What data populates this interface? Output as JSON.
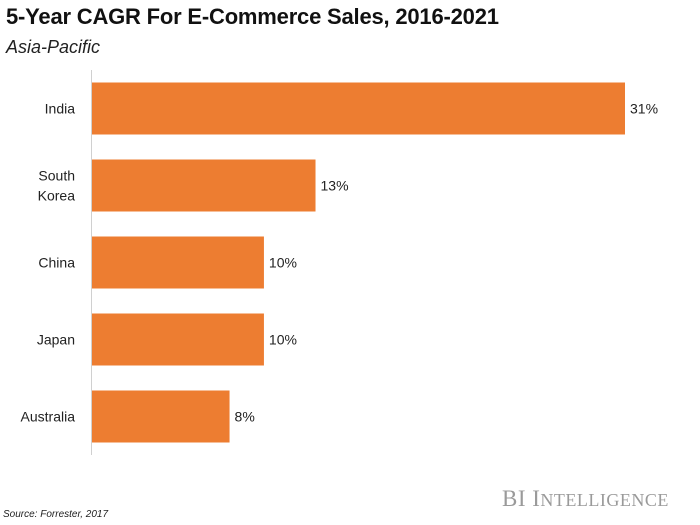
{
  "chart_data": {
    "type": "bar",
    "orientation": "horizontal",
    "title": "5-Year CAGR For E-Commerce Sales, 2016-2021",
    "subtitle": "Asia-Pacific",
    "categories": [
      "India",
      "South Korea",
      "China",
      "Japan",
      "Australia"
    ],
    "values": [
      31,
      13,
      10,
      10,
      8
    ],
    "data_labels": [
      "31%",
      "13%",
      "10%",
      "10%",
      "8%"
    ],
    "xlabel": "",
    "ylabel": "",
    "xlim": [
      0,
      31
    ],
    "grid": false,
    "bar_color": "#ED7D31"
  },
  "footer": {
    "source": "Source: Forrester, 2017",
    "logo": "BI INTELLIGENCE"
  }
}
